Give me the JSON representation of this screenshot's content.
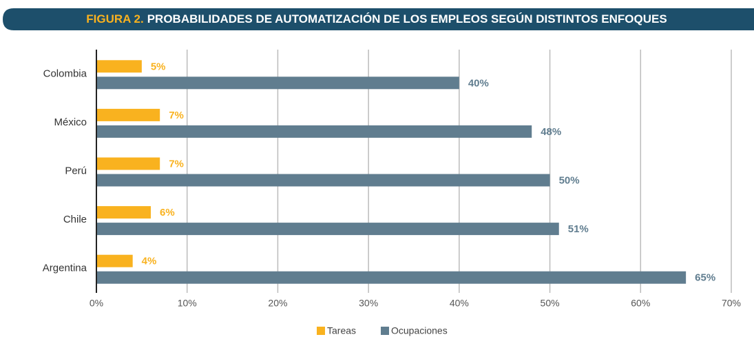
{
  "chart_data": {
    "type": "hbar",
    "title_label": "FIGURA 2.",
    "title": "PROBABILIDADES DE AUTOMATIZACIÓN DE LOS EMPLEOS SEGÚN DISTINTOS ENFOQUES",
    "categories": [
      "Colombia",
      "México",
      "Perú",
      "Chile",
      "Argentina"
    ],
    "series": [
      {
        "name": "Tareas",
        "color": "#f9b21f",
        "values": [
          5,
          7,
          7,
          6,
          4
        ],
        "value_labels": [
          "5%",
          "7%",
          "7%",
          "6%",
          "4%"
        ]
      },
      {
        "name": "Ocupaciones",
        "color": "#607d8f",
        "values": [
          40,
          48,
          50,
          51,
          65
        ],
        "value_labels": [
          "40%",
          "48%",
          "50%",
          "51%",
          "65%"
        ]
      }
    ],
    "xlim": [
      0,
      70
    ],
    "xticks": [
      {
        "value": 0,
        "label": "0%"
      },
      {
        "value": 10,
        "label": "10%"
      },
      {
        "value": 20,
        "label": "20%"
      },
      {
        "value": 30,
        "label": "30%"
      },
      {
        "value": 40,
        "label": "40%"
      },
      {
        "value": 50,
        "label": "50%"
      },
      {
        "value": 60,
        "label": "60%"
      },
      {
        "value": 70,
        "label": "70%"
      }
    ],
    "grid": true
  }
}
